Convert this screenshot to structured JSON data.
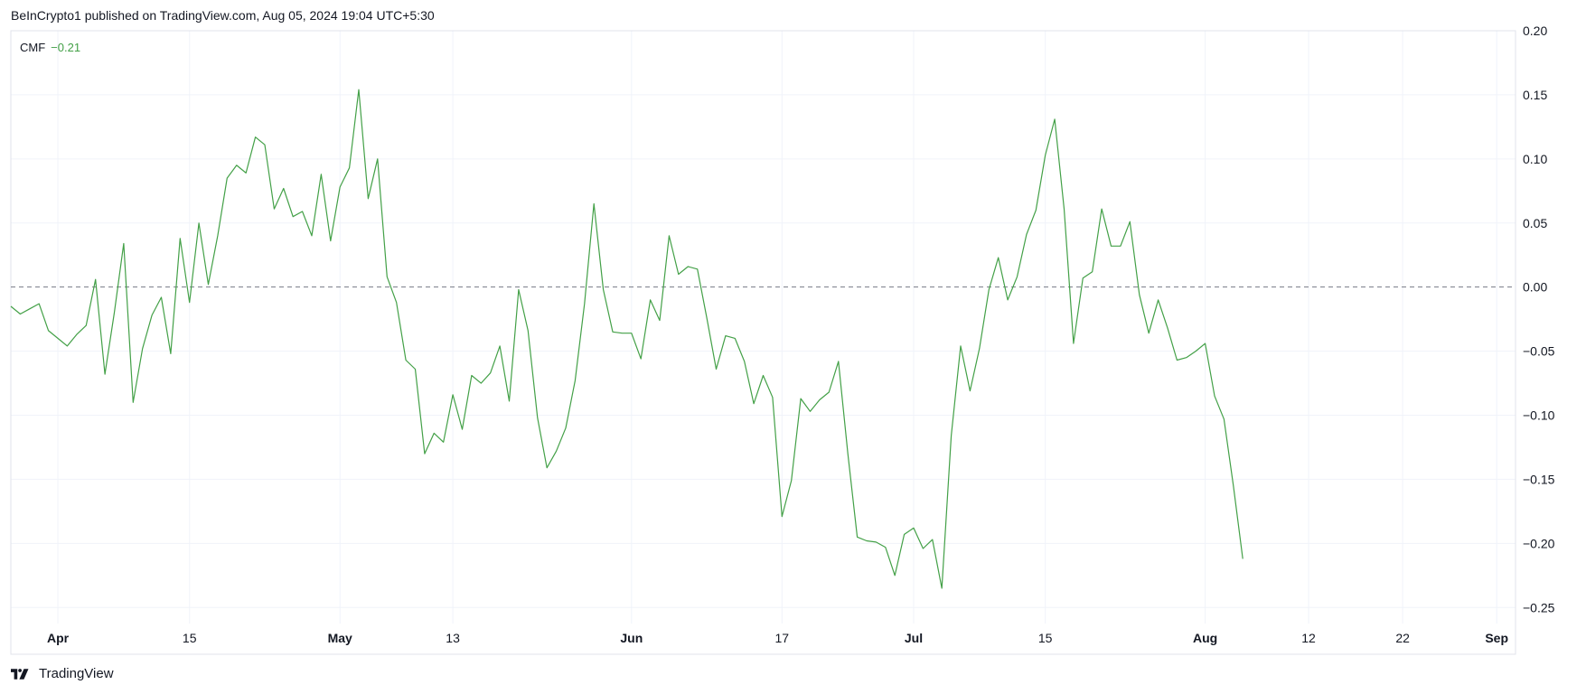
{
  "header": {
    "published": "BeInCrypto1 published on TradingView.com, Aug 05, 2024 19:04 UTC+5:30"
  },
  "legend": {
    "name": "CMF",
    "value": "−0.21"
  },
  "footer": {
    "brand": "TradingView",
    "logo_icon": "tradingview-logo-icon"
  },
  "colors": {
    "line": "#43a047",
    "grid": "#f0f3fa",
    "zero": "#787b86",
    "text": "#131722"
  },
  "chart_data": {
    "type": "line",
    "title": "",
    "ylabel": "",
    "xlabel": "",
    "indicator": "CMF",
    "zero_line": 0,
    "ylim": [
      -0.2625,
      0.2
    ],
    "y_ticks": [
      {
        "value": 0.2,
        "label": "0.20"
      },
      {
        "value": 0.15,
        "label": "0.15"
      },
      {
        "value": 0.1,
        "label": "0.10"
      },
      {
        "value": 0.05,
        "label": "0.05"
      },
      {
        "value": 0.0,
        "label": "0.00"
      },
      {
        "value": -0.05,
        "label": "−0.05"
      },
      {
        "value": -0.1,
        "label": "−0.10"
      },
      {
        "value": -0.15,
        "label": "−0.15"
      },
      {
        "value": -0.2,
        "label": "−0.20"
      },
      {
        "value": -0.25,
        "label": "−0.25"
      }
    ],
    "x_ticks": [
      {
        "date": "2024-04-01",
        "label": "Apr",
        "bold": true
      },
      {
        "date": "2024-04-15",
        "label": "15",
        "bold": false
      },
      {
        "date": "2024-05-01",
        "label": "May",
        "bold": true
      },
      {
        "date": "2024-05-13",
        "label": "13",
        "bold": false
      },
      {
        "date": "2024-06-01",
        "label": "Jun",
        "bold": true
      },
      {
        "date": "2024-06-17",
        "label": "17",
        "bold": false
      },
      {
        "date": "2024-07-01",
        "label": "Jul",
        "bold": true
      },
      {
        "date": "2024-07-15",
        "label": "15",
        "bold": false
      },
      {
        "date": "2024-08-01",
        "label": "Aug",
        "bold": true
      },
      {
        "date": "2024-08-12",
        "label": "12",
        "bold": false
      },
      {
        "date": "2024-08-22",
        "label": "22",
        "bold": false
      },
      {
        "date": "2024-09-01",
        "label": "Sep",
        "bold": true
      }
    ],
    "x_range": [
      "2024-03-27",
      "2024-09-03"
    ],
    "series": [
      {
        "color": "#43a047",
        "points": [
          [
            "2024-03-27",
            -0.015
          ],
          [
            "2024-03-28",
            -0.021
          ],
          [
            "2024-03-29",
            -0.017
          ],
          [
            "2024-03-30",
            -0.013
          ],
          [
            "2024-03-31",
            -0.034
          ],
          [
            "2024-04-01",
            -0.04
          ],
          [
            "2024-04-02",
            -0.046
          ],
          [
            "2024-04-03",
            -0.037
          ],
          [
            "2024-04-04",
            -0.03
          ],
          [
            "2024-04-05",
            0.006
          ],
          [
            "2024-04-06",
            -0.068
          ],
          [
            "2024-04-07",
            -0.02
          ],
          [
            "2024-04-08",
            0.034
          ],
          [
            "2024-04-09",
            -0.09
          ],
          [
            "2024-04-10",
            -0.048
          ],
          [
            "2024-04-11",
            -0.022
          ],
          [
            "2024-04-12",
            -0.008
          ],
          [
            "2024-04-13",
            -0.052
          ],
          [
            "2024-04-14",
            0.038
          ],
          [
            "2024-04-15",
            -0.012
          ],
          [
            "2024-04-16",
            0.05
          ],
          [
            "2024-04-17",
            0.002
          ],
          [
            "2024-04-18",
            0.04
          ],
          [
            "2024-04-19",
            0.085
          ],
          [
            "2024-04-20",
            0.095
          ],
          [
            "2024-04-21",
            0.089
          ],
          [
            "2024-04-22",
            0.117
          ],
          [
            "2024-04-23",
            0.111
          ],
          [
            "2024-04-24",
            0.061
          ],
          [
            "2024-04-25",
            0.077
          ],
          [
            "2024-04-26",
            0.055
          ],
          [
            "2024-04-27",
            0.059
          ],
          [
            "2024-04-28",
            0.04
          ],
          [
            "2024-04-29",
            0.088
          ],
          [
            "2024-04-30",
            0.036
          ],
          [
            "2024-05-01",
            0.078
          ],
          [
            "2024-05-02",
            0.093
          ],
          [
            "2024-05-03",
            0.154
          ],
          [
            "2024-05-04",
            0.069
          ],
          [
            "2024-05-05",
            0.1
          ],
          [
            "2024-05-06",
            0.008
          ],
          [
            "2024-05-07",
            -0.012
          ],
          [
            "2024-05-08",
            -0.057
          ],
          [
            "2024-05-09",
            -0.064
          ],
          [
            "2024-05-10",
            -0.13
          ],
          [
            "2024-05-11",
            -0.114
          ],
          [
            "2024-05-12",
            -0.121
          ],
          [
            "2024-05-13",
            -0.084
          ],
          [
            "2024-05-14",
            -0.111
          ],
          [
            "2024-05-15",
            -0.069
          ],
          [
            "2024-05-16",
            -0.075
          ],
          [
            "2024-05-17",
            -0.067
          ],
          [
            "2024-05-18",
            -0.046
          ],
          [
            "2024-05-19",
            -0.089
          ],
          [
            "2024-05-20",
            -0.002
          ],
          [
            "2024-05-21",
            -0.034
          ],
          [
            "2024-05-22",
            -0.102
          ],
          [
            "2024-05-23",
            -0.141
          ],
          [
            "2024-05-24",
            -0.128
          ],
          [
            "2024-05-25",
            -0.11
          ],
          [
            "2024-05-26",
            -0.073
          ],
          [
            "2024-05-27",
            -0.013
          ],
          [
            "2024-05-28",
            0.065
          ],
          [
            "2024-05-29",
            -0.002
          ],
          [
            "2024-05-30",
            -0.035
          ],
          [
            "2024-05-31",
            -0.036
          ],
          [
            "2024-06-01",
            -0.036
          ],
          [
            "2024-06-02",
            -0.056
          ],
          [
            "2024-06-03",
            -0.01
          ],
          [
            "2024-06-04",
            -0.026
          ],
          [
            "2024-06-05",
            0.04
          ],
          [
            "2024-06-06",
            0.01
          ],
          [
            "2024-06-07",
            0.016
          ],
          [
            "2024-06-08",
            0.014
          ],
          [
            "2024-06-09",
            -0.024
          ],
          [
            "2024-06-10",
            -0.064
          ],
          [
            "2024-06-11",
            -0.038
          ],
          [
            "2024-06-12",
            -0.04
          ],
          [
            "2024-06-13",
            -0.058
          ],
          [
            "2024-06-14",
            -0.091
          ],
          [
            "2024-06-15",
            -0.069
          ],
          [
            "2024-06-16",
            -0.086
          ],
          [
            "2024-06-17",
            -0.179
          ],
          [
            "2024-06-18",
            -0.151
          ],
          [
            "2024-06-19",
            -0.087
          ],
          [
            "2024-06-20",
            -0.097
          ],
          [
            "2024-06-21",
            -0.088
          ],
          [
            "2024-06-22",
            -0.082
          ],
          [
            "2024-06-23",
            -0.058
          ],
          [
            "2024-06-24",
            -0.13
          ],
          [
            "2024-06-25",
            -0.195
          ],
          [
            "2024-06-26",
            -0.198
          ],
          [
            "2024-06-27",
            -0.199
          ],
          [
            "2024-06-28",
            -0.203
          ],
          [
            "2024-06-29",
            -0.225
          ],
          [
            "2024-06-30",
            -0.193
          ],
          [
            "2024-07-01",
            -0.188
          ],
          [
            "2024-07-02",
            -0.204
          ],
          [
            "2024-07-03",
            -0.197
          ],
          [
            "2024-07-04",
            -0.235
          ],
          [
            "2024-07-05",
            -0.116
          ],
          [
            "2024-07-06",
            -0.046
          ],
          [
            "2024-07-07",
            -0.081
          ],
          [
            "2024-07-08",
            -0.048
          ],
          [
            "2024-07-09",
            -0.002
          ],
          [
            "2024-07-10",
            0.023
          ],
          [
            "2024-07-11",
            -0.01
          ],
          [
            "2024-07-12",
            0.008
          ],
          [
            "2024-07-13",
            0.041
          ],
          [
            "2024-07-14",
            0.06
          ],
          [
            "2024-07-15",
            0.103
          ],
          [
            "2024-07-16",
            0.131
          ],
          [
            "2024-07-17",
            0.061
          ],
          [
            "2024-07-18",
            -0.044
          ],
          [
            "2024-07-19",
            0.007
          ],
          [
            "2024-07-20",
            0.012
          ],
          [
            "2024-07-21",
            0.061
          ],
          [
            "2024-07-22",
            0.032
          ],
          [
            "2024-07-23",
            0.032
          ],
          [
            "2024-07-24",
            0.051
          ],
          [
            "2024-07-25",
            -0.006
          ],
          [
            "2024-07-26",
            -0.036
          ],
          [
            "2024-07-27",
            -0.01
          ],
          [
            "2024-07-28",
            -0.032
          ],
          [
            "2024-07-29",
            -0.057
          ],
          [
            "2024-07-30",
            -0.055
          ],
          [
            "2024-07-31",
            -0.05
          ],
          [
            "2024-08-01",
            -0.044
          ],
          [
            "2024-08-02",
            -0.085
          ],
          [
            "2024-08-03",
            -0.103
          ],
          [
            "2024-08-04",
            -0.155
          ],
          [
            "2024-08-05",
            -0.212
          ]
        ]
      }
    ]
  }
}
